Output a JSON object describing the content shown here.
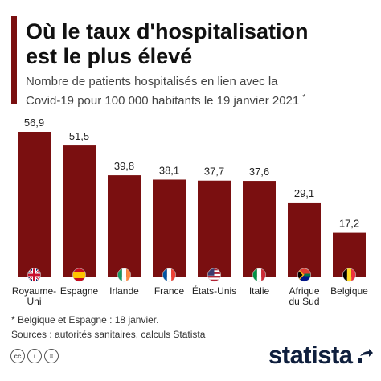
{
  "header": {
    "title_line1": "Où le taux d'hospitalisation",
    "title_line2": "est le plus élevé",
    "subtitle_line1": "Nombre de patients hospitalisés en lien avec la",
    "subtitle_line2": "Covid-19 pour 100 000 habitants le 19 janvier 2021",
    "subtitle_mark": "*"
  },
  "chart_data": {
    "type": "bar",
    "title": "Où le taux d'hospitalisation est le plus élevé",
    "subtitle": "Nombre de patients hospitalisés en lien avec la Covid-19 pour 100 000 habitants le 19 janvier 2021 *",
    "categories": [
      "Royaume-Uni",
      "Espagne",
      "Irlande",
      "France",
      "États-Unis",
      "Italie",
      "Afrique du Sud",
      "Belgique"
    ],
    "category_lines": [
      [
        "Royaume-",
        "Uni"
      ],
      [
        "Espagne"
      ],
      [
        "Irlande"
      ],
      [
        "France"
      ],
      [
        "États-Unis"
      ],
      [
        "Italie"
      ],
      [
        "Afrique",
        "du Sud"
      ],
      [
        "Belgique"
      ]
    ],
    "values": [
      56.9,
      51.5,
      39.8,
      38.1,
      37.7,
      37.6,
      29.1,
      17.2
    ],
    "value_labels": [
      "56,9",
      "51,5",
      "39,8",
      "38,1",
      "37,7",
      "37,6",
      "29,1",
      "17,2"
    ],
    "flags": [
      "uk-flag-icon",
      "spain-flag-icon",
      "ireland-flag-icon",
      "france-flag-icon",
      "usa-flag-icon",
      "italy-flag-icon",
      "south-africa-flag-icon",
      "belgium-flag-icon"
    ],
    "ylim": [
      0,
      56.9
    ],
    "xlabel": "",
    "ylabel": "",
    "grid": false,
    "bar_color": "#7a0f10"
  },
  "notes": {
    "footnote": "* Belgique et Espagne : 18 janvier.",
    "sources": "Sources : autorités sanitaires, calculs Statista"
  },
  "footer": {
    "license_icons": [
      "cc-icon",
      "attribution-icon",
      "no-derivatives-icon"
    ],
    "license_glyphs": [
      "cc",
      "i",
      "="
    ],
    "brand": "statista"
  },
  "colors": {
    "accent": "#7a0f10",
    "brand": "#0f1f3d"
  }
}
